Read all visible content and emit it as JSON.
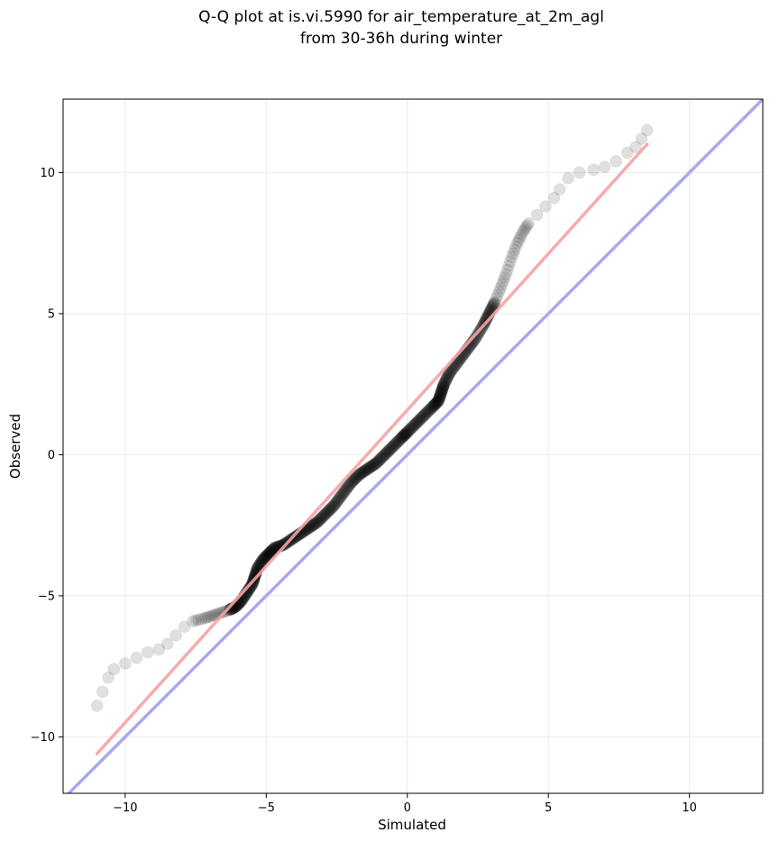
{
  "chart_data": {
    "type": "scatter",
    "title": [
      "Q-Q plot at is.vi.5990 for air_temperature_at_2m_agl",
      "from 30-36h during winter"
    ],
    "xlabel": "Simulated",
    "ylabel": "Observed",
    "xlim": [
      -12.2,
      12.6
    ],
    "ylim": [
      -12.0,
      12.6
    ],
    "xticks": [
      -10,
      -5,
      0,
      5,
      10
    ],
    "xtick_labels": [
      "−10",
      "−5",
      "0",
      "5",
      "10"
    ],
    "yticks": [
      -10,
      -5,
      0,
      5,
      10
    ],
    "ytick_labels": [
      "−10",
      "−5",
      "0",
      "5",
      "10"
    ],
    "grid": true,
    "colors": {
      "points": "#000000",
      "fit_line": "#f4a3a3",
      "identity_line": "#a8a8f4",
      "grid": "#ebebeb"
    },
    "fit_line": {
      "x": [
        -11.0,
        8.5
      ],
      "y": [
        -10.6,
        11.0
      ]
    },
    "identity_line": {
      "x": [
        -12.2,
        12.6
      ],
      "y": [
        -12.2,
        12.6
      ]
    },
    "qq_curve": {
      "x": [
        -11.0,
        -10.8,
        -10.6,
        -10.4,
        -10.0,
        -9.6,
        -9.2,
        -8.8,
        -8.5,
        -8.2,
        -7.9,
        -7.6,
        -7.2,
        -6.9,
        -6.6,
        -6.3,
        -6.1,
        -5.9,
        -5.7,
        -5.5,
        -5.4,
        -5.3,
        -5.1,
        -4.9,
        -4.7,
        -4.4,
        -4.1,
        -3.8,
        -3.5,
        -3.2,
        -2.9,
        -2.6,
        -2.3,
        -2.0,
        -1.7,
        -1.4,
        -1.1,
        -0.8,
        -0.5,
        -0.2,
        0.0,
        0.3,
        0.6,
        0.9,
        1.1,
        1.2,
        1.3,
        1.5,
        1.8,
        2.1,
        2.4,
        2.7,
        2.9,
        3.1,
        3.3,
        3.5,
        3.7,
        3.9,
        4.1,
        4.3,
        4.6,
        4.9,
        5.2,
        5.4,
        5.7,
        6.1,
        6.6,
        7.0,
        7.4,
        7.8,
        8.1,
        8.3,
        8.5
      ],
      "y": [
        -8.9,
        -8.4,
        -7.9,
        -7.6,
        -7.4,
        -7.2,
        -7.0,
        -6.9,
        -6.7,
        -6.4,
        -6.1,
        -5.9,
        -5.8,
        -5.7,
        -5.6,
        -5.5,
        -5.4,
        -5.2,
        -4.9,
        -4.6,
        -4.3,
        -4.0,
        -3.7,
        -3.5,
        -3.3,
        -3.2,
        -3.0,
        -2.8,
        -2.6,
        -2.4,
        -2.1,
        -1.8,
        -1.4,
        -1.0,
        -0.7,
        -0.5,
        -0.3,
        0.0,
        0.3,
        0.6,
        0.8,
        1.1,
        1.4,
        1.7,
        1.9,
        2.2,
        2.5,
        2.9,
        3.3,
        3.7,
        4.1,
        4.6,
        5.0,
        5.4,
        5.9,
        6.4,
        7.0,
        7.5,
        7.9,
        8.2,
        8.5,
        8.8,
        9.1,
        9.4,
        9.8,
        10.0,
        10.1,
        10.2,
        10.4,
        10.7,
        10.9,
        11.2,
        11.5
      ]
    }
  }
}
